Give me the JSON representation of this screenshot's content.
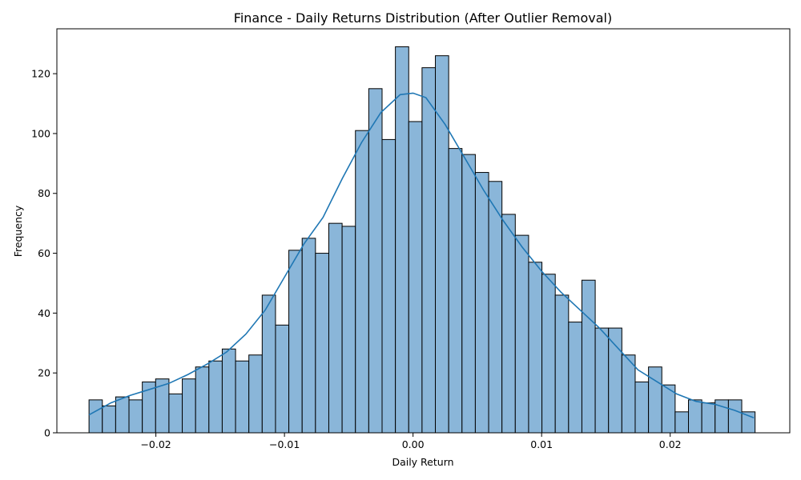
{
  "chart_data": {
    "type": "bar",
    "subtype": "histogram-with-kde",
    "title": "Finance - Daily Returns Distribution (After Outlier Removal)",
    "xlabel": "Daily Return",
    "ylabel": "Frequency",
    "xlim": [
      -0.0277,
      0.0293
    ],
    "ylim": [
      0,
      135
    ],
    "bin_start": -0.0252,
    "bin_width": 0.001036,
    "counts": [
      11,
      9,
      12,
      11,
      17,
      18,
      13,
      18,
      22,
      24,
      28,
      24,
      26,
      46,
      36,
      61,
      65,
      60,
      70,
      69,
      101,
      115,
      98,
      129,
      104,
      122,
      126,
      95,
      93,
      87,
      84,
      73,
      66,
      57,
      53,
      46,
      37,
      51,
      35,
      35,
      26,
      17,
      22,
      16,
      7,
      11,
      10,
      11,
      11,
      7
    ],
    "kde": {
      "x": [
        -0.0252,
        -0.0235,
        -0.022,
        -0.0205,
        -0.019,
        -0.0175,
        -0.016,
        -0.0145,
        -0.013,
        -0.0115,
        -0.01,
        -0.0085,
        -0.007,
        -0.0055,
        -0.004,
        -0.0025,
        -0.001,
        0.0,
        0.001,
        0.0025,
        0.004,
        0.0055,
        0.007,
        0.0085,
        0.01,
        0.0115,
        0.013,
        0.0145,
        0.016,
        0.0175,
        0.019,
        0.0205,
        0.022,
        0.0235,
        0.025,
        0.0265
      ],
      "y": [
        6,
        10,
        12.5,
        14.5,
        16.5,
        19.5,
        23,
        27,
        33,
        41,
        52,
        63,
        72,
        85,
        97,
        107,
        113,
        113.5,
        112,
        103,
        92,
        81,
        71,
        62,
        54,
        47,
        41,
        35,
        28,
        21,
        17,
        13,
        10.5,
        9.5,
        7.5,
        5
      ]
    },
    "x_ticks": [
      "−0.02",
      "−0.01",
      "0.00",
      "0.01",
      "0.02"
    ],
    "x_tick_values": [
      -0.02,
      -0.01,
      0.0,
      0.01,
      0.02
    ],
    "y_ticks": [
      "0",
      "20",
      "40",
      "60",
      "80",
      "100",
      "120"
    ],
    "y_tick_values": [
      0,
      20,
      40,
      60,
      80,
      100,
      120
    ],
    "legend": "none",
    "grid": false
  }
}
